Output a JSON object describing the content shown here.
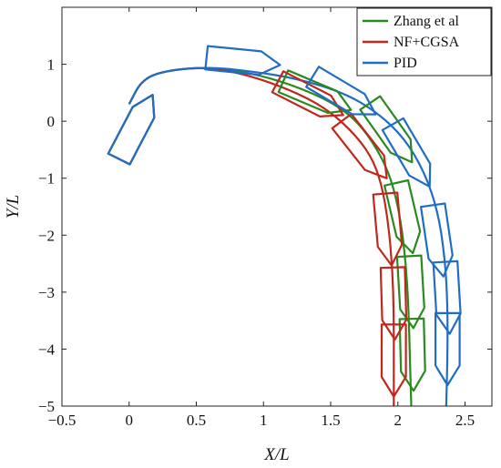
{
  "chart_data": {
    "type": "line",
    "title": "",
    "xlabel": "X/L",
    "ylabel": "Y/L",
    "xlim": [
      -0.5,
      2.7
    ],
    "ylim": [
      -5,
      2
    ],
    "xticks": [
      -0.5,
      0,
      0.5,
      1,
      1.5,
      2,
      2.5
    ],
    "yticks": [
      1,
      0,
      -1,
      -2,
      -3,
      -4,
      -5
    ],
    "xtick_labels": [
      "−0.5",
      "0",
      "0.5",
      "1",
      "1.5",
      "2",
      "2.5"
    ],
    "ytick_labels": [
      "1",
      "0",
      "−1",
      "−2",
      "−3",
      "−4",
      "−5"
    ],
    "grid": false,
    "legend_position": "top-right",
    "series": [
      {
        "name": "Zhang et al",
        "color": "#2a8a1f",
        "x": [
          0.0,
          0.1,
          0.3,
          0.6,
          0.9,
          1.2,
          1.5,
          1.7,
          1.85,
          1.95,
          2.02,
          2.06,
          2.08,
          2.09,
          2.1
        ],
        "y": [
          0.3,
          0.75,
          0.9,
          0.95,
          0.85,
          0.65,
          0.35,
          0.0,
          -0.5,
          -1.0,
          -1.7,
          -2.5,
          -3.3,
          -4.2,
          -5.0
        ]
      },
      {
        "name": "NF+CGSA",
        "color": "#c0271d",
        "x": [
          0.0,
          0.1,
          0.3,
          0.6,
          0.9,
          1.2,
          1.45,
          1.65,
          1.8,
          1.88,
          1.93,
          1.96,
          1.97,
          1.97,
          1.97
        ],
        "y": [
          0.3,
          0.75,
          0.9,
          0.95,
          0.8,
          0.55,
          0.25,
          -0.15,
          -0.6,
          -1.1,
          -1.8,
          -2.6,
          -3.4,
          -4.2,
          -5.0
        ]
      },
      {
        "name": "PID",
        "color": "#1f6ec4",
        "x": [
          0.0,
          0.1,
          0.3,
          0.6,
          0.9,
          1.25,
          1.6,
          1.85,
          2.05,
          2.2,
          2.3,
          2.35,
          2.37,
          2.37,
          2.36
        ],
        "y": [
          0.3,
          0.75,
          0.9,
          0.95,
          0.88,
          0.75,
          0.5,
          0.15,
          -0.3,
          -0.9,
          -1.6,
          -2.4,
          -3.2,
          -4.1,
          -5.0
        ]
      }
    ],
    "ship_outlines": [
      {
        "series": "Zhang et al",
        "positions": [
          [
            0.05,
            -0.1
          ],
          [
            1.4,
            0.45
          ],
          [
            1.95,
            -0.2
          ],
          [
            2.05,
            -1.7
          ],
          [
            2.1,
            -3.0
          ],
          [
            2.11,
            -4.1
          ]
        ]
      },
      {
        "series": "NF+CGSA",
        "positions": [
          [
            0.05,
            -0.1
          ],
          [
            1.35,
            0.4
          ],
          [
            1.75,
            -0.5
          ],
          [
            1.93,
            -1.9
          ],
          [
            1.97,
            -3.2
          ],
          [
            1.97,
            -4.2
          ]
        ]
      },
      {
        "series": "PID",
        "positions": [
          [
            0.05,
            -0.1
          ],
          [
            0.85,
            1.05
          ],
          [
            1.6,
            0.45
          ],
          [
            2.1,
            -0.6
          ],
          [
            2.3,
            -2.1
          ],
          [
            2.37,
            -3.1
          ],
          [
            2.37,
            -4.0
          ]
        ]
      }
    ]
  }
}
